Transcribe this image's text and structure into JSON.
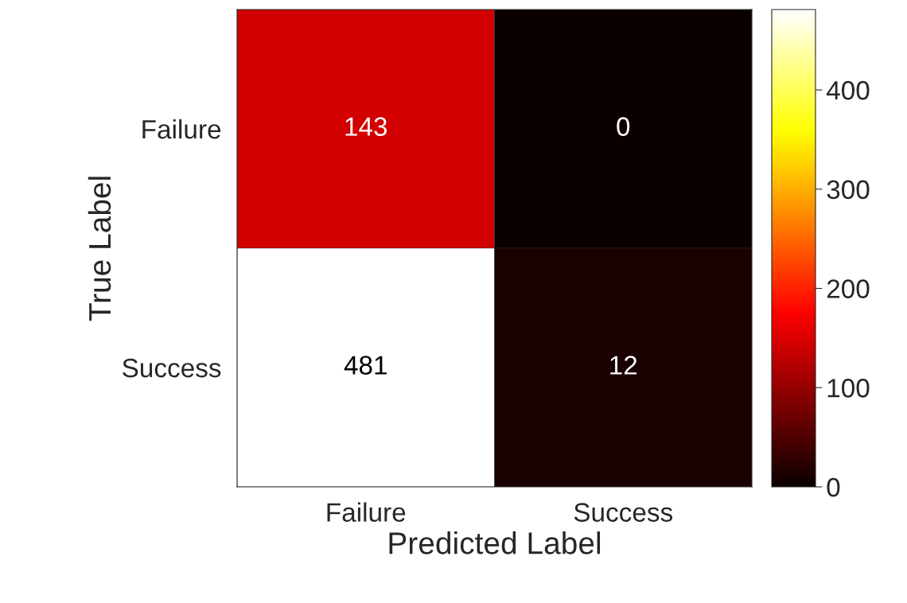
{
  "chart_data": {
    "type": "heatmap",
    "xlabel": "Predicted Label",
    "ylabel": "True Label",
    "categories": [
      "Failure",
      "Success"
    ],
    "y_categories": [
      "Failure",
      "Success"
    ],
    "cells": [
      [
        143,
        0
      ],
      [
        481,
        12
      ]
    ],
    "clim": [
      0,
      481
    ],
    "cticks": [
      0,
      100,
      200,
      300,
      400
    ],
    "data_labels": true
  }
}
